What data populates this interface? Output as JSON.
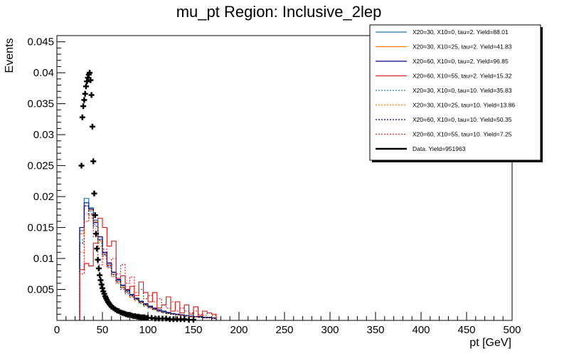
{
  "chart_data": {
    "type": "histogram",
    "title": "mu_pt Region: Inclusive_2lep",
    "xlabel": "pt [GeV]",
    "ylabel": "Events",
    "xlim": [
      0,
      500
    ],
    "ylim": [
      0,
      0.046
    ],
    "x_ticks": [
      "0",
      "50",
      "100",
      "150",
      "200",
      "250",
      "300",
      "350",
      "400",
      "450",
      "500"
    ],
    "y_ticks": [
      "0.005",
      "0.01",
      "0.015",
      "0.02",
      "0.025",
      "0.03",
      "0.035",
      "0.04",
      "0.045"
    ],
    "legend_position": "top-right",
    "bin_width": 5,
    "bin_start": 25,
    "series": [
      {
        "name": "X20=30, X10=0, tau=2. Yield=88.01",
        "color": "#1f77b4",
        "style": "solid",
        "values": [
          0.0145,
          0.0197,
          0.0182,
          0.0162,
          0.0131,
          0.0108,
          0.0091,
          0.0077,
          0.0065,
          0.0056,
          0.0048,
          0.0041,
          0.0035,
          0.003,
          0.0026,
          0.0022,
          0.0019,
          0.0016,
          0.0014,
          0.0012,
          0.0011,
          0.001,
          0.0009,
          0.0008,
          0.0007,
          0.0006,
          0.0006,
          0.0005,
          0.0005,
          0.0004
        ]
      },
      {
        "name": "X20=30, X10=25, tau=2. Yield=41.83",
        "color": "#ff7f0e",
        "style": "solid",
        "values": [
          0.014,
          0.0185,
          0.0178,
          0.016,
          0.0128,
          0.0106,
          0.0089,
          0.0074,
          0.0063,
          0.0054,
          0.0046,
          0.0039,
          0.0034,
          0.0029,
          0.0025,
          0.0021,
          0.0018,
          0.0015,
          0.0013,
          0.0011,
          0.001,
          0.0009,
          0.0008,
          0.0007,
          0.0006,
          0.0006,
          0.0005,
          0.0005,
          0.0004,
          0.0004
        ]
      },
      {
        "name": "X20=60, X10=0, tau=2. Yield=96.85",
        "color": "#000080",
        "style": "solid",
        "values": [
          0.015,
          0.019,
          0.018,
          0.0158,
          0.0135,
          0.011,
          0.0093,
          0.0078,
          0.0066,
          0.0057,
          0.0049,
          0.0042,
          0.0036,
          0.0031,
          0.0027,
          0.0023,
          0.002,
          0.0017,
          0.0015,
          0.0013,
          0.0011,
          0.001,
          0.0009,
          0.0008,
          0.0007,
          0.0006,
          0.0006,
          0.0005,
          0.0005,
          0.0004
        ]
      },
      {
        "name": "X20=60, X10=55, tau=2. Yield=15.32",
        "color": "#d62728",
        "style": "solid",
        "values": [
          0.0082,
          0.0092,
          0.0088,
          0.0125,
          0.0165,
          0.015,
          0.012,
          0.0128,
          0.0068,
          0.0072,
          0.005,
          0.0055,
          0.004,
          0.0062,
          0.0045,
          0.003,
          0.0045,
          0.002,
          0.0025,
          0.0038,
          0.0015,
          0.003,
          0.0012,
          0.0025,
          0.001,
          0.0022,
          0.0008,
          0.0015,
          0.0012,
          0.001
        ]
      },
      {
        "name": "X20=30, X10=0, tau=10. Yield=35.83",
        "color": "#1f77b4",
        "style": "dotted",
        "values": [
          0.013,
          0.019,
          0.0176,
          0.0155,
          0.0125,
          0.0104,
          0.0086,
          0.0071,
          0.006,
          0.005,
          0.0043,
          0.0037,
          0.0032,
          0.0027,
          0.0023,
          0.002,
          0.0017,
          0.0014,
          0.0012,
          0.0011,
          0.001,
          0.0009,
          0.0008,
          0.0007,
          0.0006,
          0.0006,
          0.0005,
          0.0004,
          0.0004,
          0.0003
        ]
      },
      {
        "name": "X20=30, X10=25, tau=10. Yield=13.86",
        "color": "#ff7f0e",
        "style": "dotted",
        "values": [
          0.011,
          0.0172,
          0.0165,
          0.0148,
          0.012,
          0.01,
          0.0085,
          0.007,
          0.006,
          0.0052,
          0.0045,
          0.0038,
          0.0032,
          0.0028,
          0.0024,
          0.002,
          0.0017,
          0.0015,
          0.0013,
          0.0011,
          0.001,
          0.0009,
          0.0008,
          0.0007,
          0.0006,
          0.0005,
          0.0005,
          0.0004,
          0.0004,
          0.0003
        ]
      },
      {
        "name": "X20=60, X10=0, tau=10. Yield=50.35",
        "color": "#000080",
        "style": "dotted",
        "values": [
          0.0125,
          0.0185,
          0.0172,
          0.0152,
          0.013,
          0.0106,
          0.0088,
          0.0074,
          0.0062,
          0.0053,
          0.0046,
          0.004,
          0.0034,
          0.0029,
          0.0025,
          0.0021,
          0.0018,
          0.0015,
          0.0013,
          0.0011,
          0.001,
          0.0009,
          0.0008,
          0.0007,
          0.0006,
          0.0006,
          0.0005,
          0.0004,
          0.0004,
          0.0003
        ]
      },
      {
        "name": "X20=60, X10=55, tau=10. Yield=7.25",
        "color": "#d62728",
        "style": "dotted",
        "values": [
          0.0075,
          0.016,
          0.017,
          0.0135,
          0.009,
          0.0115,
          0.0085,
          0.01,
          0.0075,
          0.009,
          0.006,
          0.007,
          0.0045,
          0.005,
          0.0035,
          0.004,
          0.003,
          0.0035,
          0.0025,
          0.002,
          0.003,
          0.0015,
          0.002,
          0.0015,
          0.0012,
          0.0015,
          0.001,
          0.0008,
          0.0012,
          0.0008
        ]
      }
    ],
    "data_series": {
      "name": "Data. Yield=951963",
      "color": "#000000",
      "x": [
        27,
        28,
        29,
        30,
        31,
        32,
        33,
        34,
        35,
        36,
        37,
        38,
        39,
        40,
        41,
        42,
        43,
        44,
        45,
        46,
        47,
        48,
        49,
        50,
        51,
        52,
        53,
        54,
        55,
        56,
        57,
        58,
        59,
        60,
        62,
        64,
        66,
        68,
        70,
        72,
        74,
        76,
        78,
        80,
        82,
        84,
        86,
        88,
        90,
        92,
        94,
        96,
        98,
        100,
        104,
        108,
        112,
        116,
        120,
        124,
        128,
        132,
        136,
        140,
        145,
        150
      ],
      "y": [
        0.025,
        0.0328,
        0.0346,
        0.0356,
        0.0366,
        0.0378,
        0.0386,
        0.0392,
        0.0397,
        0.04,
        0.0388,
        0.0364,
        0.0313,
        0.0257,
        0.0205,
        0.017,
        0.014,
        0.0116,
        0.0098,
        0.0084,
        0.0073,
        0.0065,
        0.0058,
        0.0052,
        0.0047,
        0.0043,
        0.0039,
        0.0036,
        0.0033,
        0.003,
        0.0028,
        0.0026,
        0.0024,
        0.0022,
        0.002,
        0.0018,
        0.0016,
        0.0015,
        0.0013,
        0.0012,
        0.0011,
        0.001,
        0.0009,
        0.0009,
        0.0008,
        0.0007,
        0.0007,
        0.0006,
        0.0006,
        0.0005,
        0.0005,
        0.0005,
        0.0004,
        0.0004,
        0.0004,
        0.0003,
        0.0003,
        0.0003,
        0.0003,
        0.0002,
        0.0002,
        0.0002,
        0.0002,
        0.0002,
        0.0001,
        0.0001
      ]
    }
  }
}
